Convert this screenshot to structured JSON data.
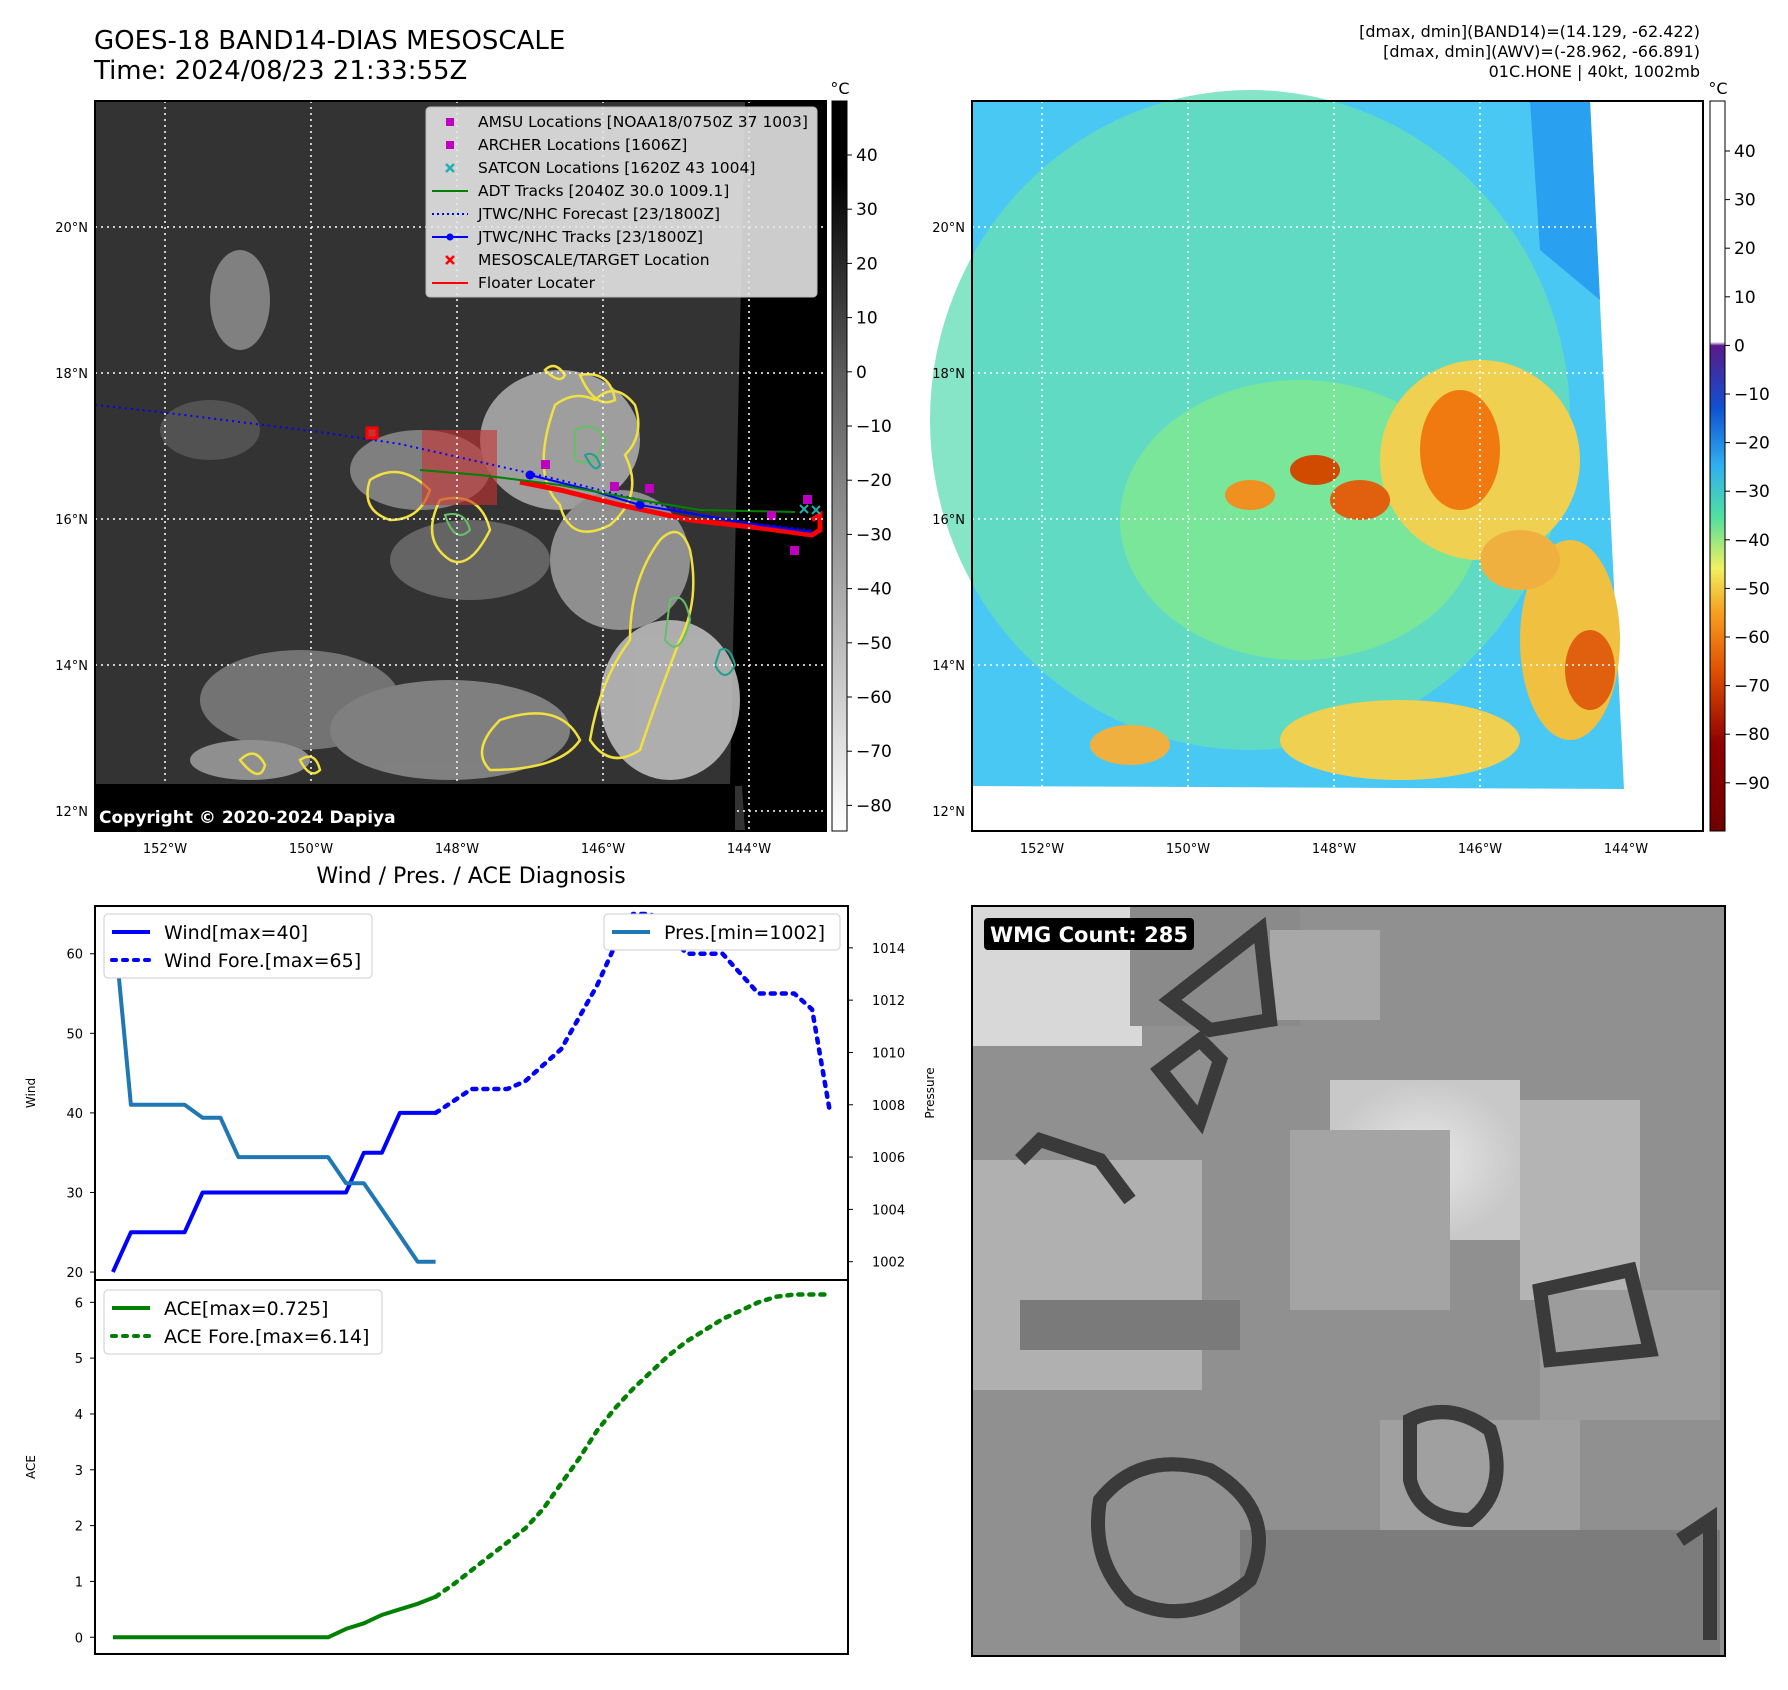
{
  "header": {
    "title": "GOES-18 BAND14-DIAS MESOSCALE",
    "time": "Time: 2024/08/23 21:33:55Z",
    "dmax_band14": "[dmax, dmin](BAND14)=(14.129, -62.422)",
    "dmax_awv": "[dmax, dmin](AWV)=(-28.962, -66.891)",
    "storm_info": "01C.HONE | 40kt, 1002mb"
  },
  "map": {
    "lat_ticks": [
      "20°N",
      "18°N",
      "16°N",
      "14°N",
      "12°N"
    ],
    "lon_ticks": [
      "152°W",
      "150°W",
      "148°W",
      "146°W",
      "144°W"
    ],
    "copyright": "Copyright © 2020-2024 Dapiya",
    "unit": "°C",
    "colorbar1_ticks": [
      "40",
      "30",
      "20",
      "10",
      "0",
      "−10",
      "−20",
      "−30",
      "−40",
      "−50",
      "−60",
      "−70",
      "−80"
    ],
    "colorbar2_ticks": [
      "40",
      "30",
      "20",
      "10",
      "0",
      "−10",
      "−20",
      "−30",
      "−40",
      "−50",
      "−60",
      "−70",
      "−80",
      "−90"
    ],
    "legend": [
      {
        "label": "AMSU Locations [NOAA18/0750Z 37 1003]",
        "marker": "square",
        "color": "#c000c0"
      },
      {
        "label": "ARCHER Locations [1606Z]",
        "marker": "square",
        "color": "#c000c0"
      },
      {
        "label": "SATCON Locations [1620Z 43 1004]",
        "marker": "x",
        "color": "#20b0b0"
      },
      {
        "label": "ADT Tracks [2040Z 30.0 1009.1]",
        "marker": "line",
        "color": "#008000"
      },
      {
        "label": "JTWC/NHC Forecast [23/1800Z]",
        "marker": "dotted",
        "color": "#0000ff"
      },
      {
        "label": "JTWC/NHC Tracks [23/1800Z]",
        "marker": "line-dot",
        "color": "#0000ff"
      },
      {
        "label": "MESOSCALE/TARGET Location",
        "marker": "x",
        "color": "#ff0000"
      },
      {
        "label": "Floater Locater",
        "marker": "line",
        "color": "#ff0000"
      }
    ]
  },
  "wmg": {
    "label": "WMG Count: 285"
  },
  "chart_data": [
    {
      "type": "line",
      "title": "Wind / Pres. / ACE Diagnosis",
      "ylabel": "Wind",
      "ylabel_right": "Pressure",
      "ylim": [
        19,
        66
      ],
      "ylim_right": [
        1001.3,
        1015.6
      ],
      "yticks": [
        20,
        30,
        40,
        50,
        60
      ],
      "yticks_right": [
        1002,
        1004,
        1006,
        1008,
        1010,
        1012,
        1014
      ],
      "x": [
        0,
        1,
        2,
        3,
        4,
        5,
        6,
        7,
        8,
        9,
        10,
        11,
        12,
        13,
        14,
        15,
        16,
        17,
        18,
        19,
        20,
        21,
        22,
        23,
        24,
        25,
        26,
        27,
        28,
        29,
        30,
        31,
        32,
        33,
        34,
        35,
        36,
        37,
        38,
        39,
        40
      ],
      "series": [
        {
          "name": "Wind[max=40]",
          "axis": "left",
          "style": "solid",
          "color": "#0000ff",
          "x": [
            0,
            1,
            2,
            3,
            4,
            5,
            6,
            7,
            8,
            9,
            10,
            11,
            12,
            13,
            14,
            15,
            16,
            17,
            18
          ],
          "values": [
            20,
            25,
            25,
            25,
            25,
            30,
            30,
            30,
            30,
            30,
            30,
            30,
            30,
            30,
            35,
            35,
            40,
            40,
            40
          ]
        },
        {
          "name": "Wind Fore.[max=65]",
          "axis": "left",
          "style": "dotted",
          "color": "#0000ff",
          "x": [
            18,
            19,
            20,
            21,
            22,
            23,
            24,
            25,
            26,
            27,
            28,
            29,
            30,
            31,
            32,
            33,
            34,
            35,
            36,
            37,
            38,
            39,
            40
          ],
          "values": [
            40,
            41.5,
            43,
            43,
            43,
            44,
            46,
            48,
            52,
            56,
            61,
            65,
            65,
            62.5,
            60,
            60,
            60,
            57.5,
            55,
            55,
            55,
            53,
            40
          ]
        },
        {
          "name": "Pres.[min=1002]",
          "axis": "right",
          "style": "solid",
          "color": "#1f77b4",
          "x": [
            0,
            1,
            2,
            3,
            4,
            5,
            6,
            7,
            8,
            9,
            10,
            11,
            12,
            13,
            14,
            15,
            16,
            17,
            18
          ],
          "values": [
            1015.3,
            1008,
            1008,
            1008,
            1008,
            1007.5,
            1007.5,
            1006,
            1006,
            1006,
            1006,
            1006,
            1006,
            1005,
            1005,
            1004,
            1003,
            1002,
            1002
          ]
        }
      ]
    },
    {
      "type": "line",
      "ylabel": "ACE",
      "ylim": [
        -0.3,
        6.4
      ],
      "yticks": [
        0,
        1,
        2,
        3,
        4,
        5,
        6
      ],
      "series": [
        {
          "name": "ACE[max=0.725]",
          "style": "solid",
          "color": "#008000",
          "x": [
            0,
            1,
            2,
            3,
            4,
            5,
            6,
            7,
            8,
            9,
            10,
            11,
            12,
            13,
            14,
            15,
            16,
            17,
            18
          ],
          "values": [
            0,
            0,
            0,
            0,
            0,
            0,
            0,
            0,
            0,
            0,
            0,
            0,
            0,
            0.15,
            0.25,
            0.4,
            0.5,
            0.6,
            0.725
          ]
        },
        {
          "name": "ACE Fore.[max=6.14]",
          "style": "dotted",
          "color": "#008000",
          "x": [
            18,
            19,
            20,
            21,
            22,
            23,
            24,
            25,
            26,
            27,
            28,
            29,
            30,
            31,
            32,
            33,
            34,
            35,
            36,
            37,
            38,
            39,
            40
          ],
          "values": [
            0.725,
            0.95,
            1.2,
            1.45,
            1.7,
            1.95,
            2.3,
            2.75,
            3.2,
            3.7,
            4.1,
            4.45,
            4.75,
            5.05,
            5.3,
            5.5,
            5.7,
            5.85,
            6.0,
            6.1,
            6.14,
            6.14,
            6.14
          ]
        }
      ]
    }
  ]
}
